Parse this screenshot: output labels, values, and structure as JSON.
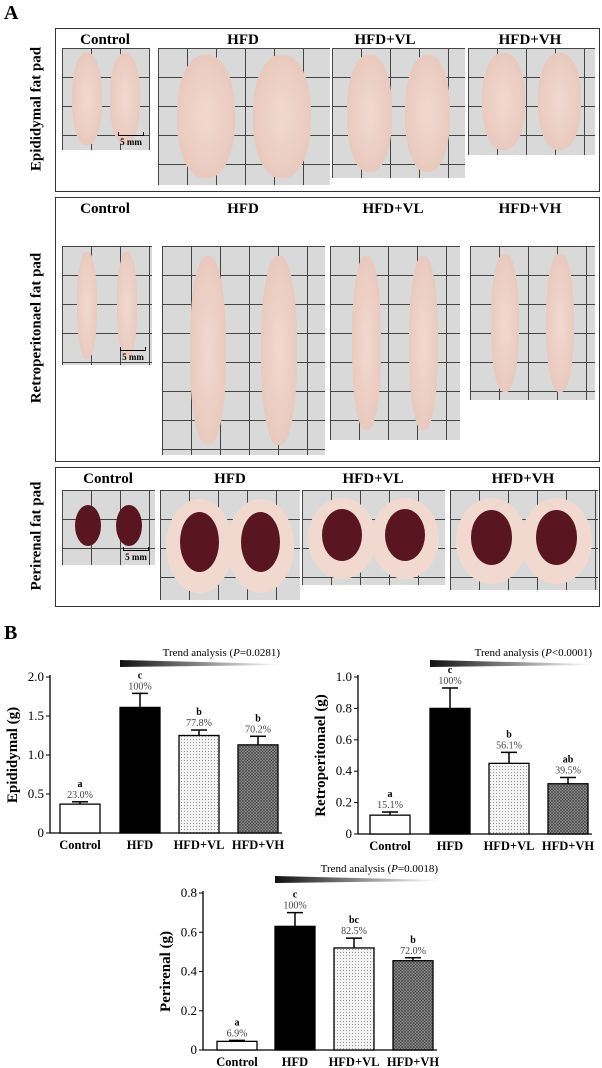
{
  "panel_a": {
    "letter": "A",
    "scale_label": "5 mm",
    "rows": [
      {
        "label": "Epididymal fat pad",
        "groups": [
          "Control",
          "HFD",
          "HFD+VL",
          "HFD+VH"
        ]
      },
      {
        "label": "Retroperitonael fat pad",
        "groups": [
          "Control",
          "HFD",
          "HFD+VL",
          "HFD+VH"
        ]
      },
      {
        "label": "Perirenal fat pad",
        "groups": [
          "Control",
          "HFD",
          "HFD+VL",
          "HFD+VH"
        ]
      }
    ]
  },
  "panel_b": {
    "letter": "B"
  },
  "colors": {
    "control": "#ffffff",
    "hfd": "#000000",
    "hfd_vl": "#e8e8e8",
    "hfd_vh": "#777777",
    "tissue": "#f1d9cf",
    "kidney": "#5a1620"
  },
  "chart_data": [
    {
      "type": "bar",
      "ylabel": "Epididymal (g)",
      "ylim": [
        0,
        2.0
      ],
      "yticks": [
        "0",
        "0.5",
        "1.0",
        "1.5",
        "2.0"
      ],
      "categories": [
        "Control",
        "HFD",
        "HFD+VL",
        "HFD+VH"
      ],
      "values": [
        0.37,
        1.61,
        1.25,
        1.13
      ],
      "errors": [
        0.03,
        0.18,
        0.07,
        0.11
      ],
      "letters": [
        "a",
        "c",
        "b",
        "b"
      ],
      "percent_labels": [
        "23.0%",
        "100%",
        "77.8%",
        "70.2%"
      ],
      "trend": {
        "prefix": "Trend analysis (",
        "p": "P",
        "value": "=0.0281)"
      }
    },
    {
      "type": "bar",
      "ylabel": "Retroperitonael (g)",
      "ylim": [
        0,
        1.0
      ],
      "yticks": [
        "0",
        "0.2",
        "0.4",
        "0.6",
        "0.8",
        "1.0"
      ],
      "categories": [
        "Control",
        "HFD",
        "HFD+VL",
        "HFD+VH"
      ],
      "values": [
        0.12,
        0.8,
        0.45,
        0.32
      ],
      "errors": [
        0.02,
        0.13,
        0.07,
        0.04
      ],
      "letters": [
        "a",
        "c",
        "b",
        "ab"
      ],
      "percent_labels": [
        "15.1%",
        "100%",
        "56.1%",
        "39.5%"
      ],
      "trend": {
        "prefix": "Trend analysis (",
        "p": "P",
        "value": "<0.0001)"
      }
    },
    {
      "type": "bar",
      "ylabel": "Perirenal (g)",
      "ylim": [
        0,
        0.8
      ],
      "yticks": [
        "0",
        "0.2",
        "0.4",
        "0.6",
        "0.8"
      ],
      "categories": [
        "Control",
        "HFD",
        "HFD+VL",
        "HFD+VH"
      ],
      "values": [
        0.044,
        0.63,
        0.52,
        0.455
      ],
      "errors": [
        0.005,
        0.07,
        0.05,
        0.015
      ],
      "letters": [
        "a",
        "c",
        "bc",
        "b"
      ],
      "percent_labels": [
        "6.9%",
        "100%",
        "82.5%",
        "72.0%"
      ],
      "trend": {
        "prefix": "Trend analysis (",
        "p": "P",
        "value": "=0.0018)"
      }
    }
  ]
}
